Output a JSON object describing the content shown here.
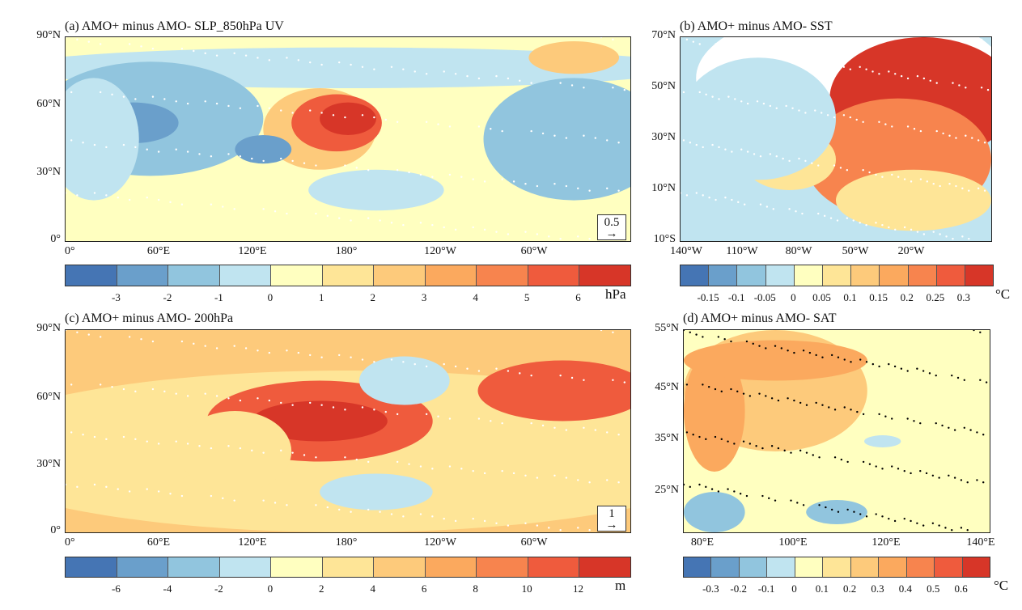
{
  "colors": [
    "#4575b4",
    "#6a9fcb",
    "#91c5de",
    "#c0e4f0",
    "#ffffc0",
    "#fee597",
    "#fdca7b",
    "#fba95e",
    "#f7844e",
    "#ef5b3d",
    "#d73628"
  ],
  "panels": [
    {
      "id": "a",
      "title": "(a) AMO+ minus AMO- SLP_850hPa UV",
      "yticks": [
        "90°N",
        "60°N",
        "30°N",
        "0°"
      ],
      "xticks": [
        "0°",
        "60°E",
        "120°E",
        "180°",
        "120°W",
        "60°W"
      ],
      "cbar_labels": [
        "-3",
        "-2",
        "-1",
        "0",
        "1",
        "2",
        "3",
        "4",
        "5",
        "6"
      ],
      "unit": "hPa",
      "ref_vector": "0.5"
    },
    {
      "id": "b",
      "title": "(b) AMO+ minus AMO- SST",
      "yticks": [
        "70°N",
        "50°N",
        "30°N",
        "10°N",
        "10°S"
      ],
      "xticks": [
        "140°W",
        "110°W",
        "80°W",
        "50°W",
        "20°W"
      ],
      "cbar_labels": [
        "-0.15",
        "-0.1",
        "-0.05",
        "0",
        "0.05",
        "0.1",
        "0.15",
        "0.2",
        "0.25",
        "0.3"
      ],
      "unit": "°C"
    },
    {
      "id": "c",
      "title": "(c) AMO+ minus AMO- 200hPa",
      "yticks": [
        "90°N",
        "60°N",
        "30°N",
        "0°"
      ],
      "xticks": [
        "0°",
        "60°E",
        "120°E",
        "180°",
        "120°W",
        "60°W"
      ],
      "cbar_labels": [
        "-6",
        "-4",
        "-2",
        "0",
        "2",
        "4",
        "6",
        "8",
        "10",
        "12"
      ],
      "unit": "m",
      "ref_vector": "1"
    },
    {
      "id": "d",
      "title": "(d) AMO+ minus AMO- SAT",
      "yticks": [
        "55°N",
        "45°N",
        "35°N",
        "25°N"
      ],
      "xticks": [
        "80°E",
        "100°E",
        "120°E",
        "140°E"
      ],
      "cbar_labels": [
        "-0.3",
        "-0.2",
        "-0.1",
        "0",
        "0.1",
        "0.2",
        "0.3",
        "0.4",
        "0.5",
        "0.6"
      ],
      "unit": "°C"
    }
  ]
}
